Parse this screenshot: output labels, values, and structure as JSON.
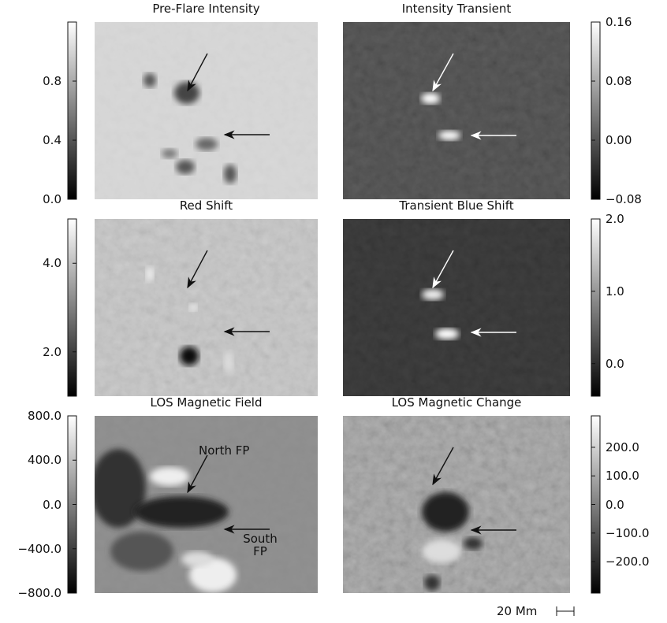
{
  "panels": [
    {
      "title": "Pre-Flare Intensity",
      "colorbar": {
        "range": [
          0,
          1.2
        ],
        "ticks": [
          {
            "value": 0,
            "label": "0.0"
          },
          0.4,
          0.8
        ]
      }
    },
    {
      "title": "Intensity Transient",
      "colorbar": {
        "range": [
          -0.08,
          0.16
        ],
        "ticks": [
          {
            "value": -0.08,
            "label": "−0.08"
          },
          {
            "value": 0,
            "label": "0.00"
          },
          0.08,
          0.16
        ]
      }
    },
    {
      "title": "Red Shift",
      "colorbar": {
        "range": [
          1,
          5
        ],
        "ticks": [
          {
            "value": 2,
            "label": "2.0"
          },
          {
            "value": 4,
            "label": "4.0"
          }
        ]
      }
    },
    {
      "title": "Transient Blue Shift",
      "colorbar": {
        "range": [
          -0.45,
          2
        ],
        "ticks": [
          {
            "value": 0,
            "label": "0.0"
          },
          {
            "value": 1,
            "label": "1.0"
          },
          {
            "value": 2,
            "label": "2.0"
          }
        ]
      }
    },
    {
      "title": "LOS Magnetic Field",
      "colorbar": {
        "range": [
          -800,
          800
        ],
        "ticks": [
          {
            "value": -800,
            "label": "−800.0"
          },
          {
            "value": -400,
            "label": "−400.0"
          },
          {
            "value": 0,
            "label": "0.0"
          },
          {
            "value": 400,
            "label": "400.0"
          },
          {
            "value": 800,
            "label": "800.0"
          }
        ]
      }
    },
    {
      "title": "LOS Magnetic Change",
      "colorbar": {
        "range": [
          -310,
          310
        ],
        "ticks": [
          {
            "value": -200,
            "label": "−200.0"
          },
          {
            "value": -100,
            "label": "−100.0"
          },
          {
            "value": 0,
            "label": "0.0"
          },
          {
            "value": 100,
            "label": "100.0"
          },
          {
            "value": 200,
            "label": "200.0"
          }
        ]
      }
    }
  ],
  "annotations": {
    "north": "North FP",
    "south": "South FP"
  },
  "scale_bar": "20 Mm"
}
